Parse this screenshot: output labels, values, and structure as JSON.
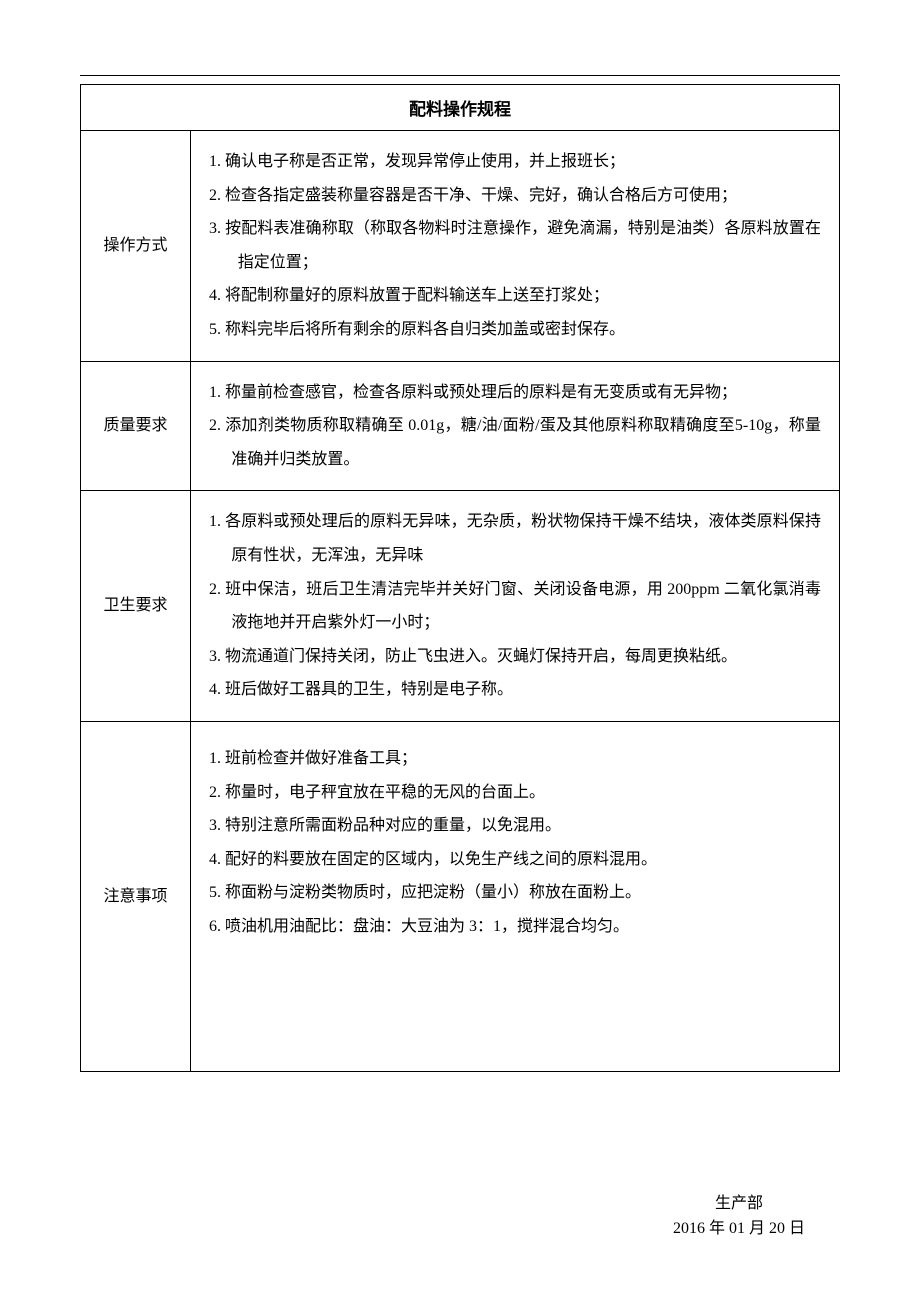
{
  "title": "配料操作规程",
  "rows": {
    "operation": {
      "label": "操作方式",
      "items": [
        "1.  确认电子称是否正常，发现异常停止使用，并上报班长；",
        "2.  检查各指定盛装称量容器是否干净、干燥、完好，确认合格后方可使用；",
        "3.  按配料表准确称取（称取各物料时注意操作，避免滴漏，特别是油类）各原料放置在指定位置；",
        "4.  将配制称量好的原料放置于配料输送车上送至打浆处；",
        "5.  称料完毕后将所有剩余的原料各自归类加盖或密封保存。"
      ]
    },
    "quality": {
      "label": "质量要求",
      "items": [
        "1. 称量前检查感官，检查各原料或预处理后的原料是有无变质或有无异物；",
        "2. 添加剂类物质称取精确至 0.01g，糖/油/面粉/蛋及其他原料称取精确度至5-10g，称量准确并归类放置。"
      ]
    },
    "hygiene": {
      "label": "卫生要求",
      "items": [
        "1. 各原料或预处理后的原料无异味，无杂质，粉状物保持干燥不结块，液体类原料保持原有性状，无浑浊，无异味",
        "2. 班中保洁，班后卫生清洁完毕并关好门窗、关闭设备电源，用 200ppm 二氧化氯消毒液拖地并开启紫外灯一小时；",
        "3. 物流通道门保持关闭，防止飞虫进入。灭蝇灯保持开启，每周更换粘纸。",
        "4. 班后做好工器具的卫生，特别是电子称。"
      ]
    },
    "notes": {
      "label": "注意事项",
      "items": [
        "1. 班前检查并做好准备工具；",
        "2. 称量时，电子秤宜放在平稳的无风的台面上。",
        "3. 特别注意所需面粉品种对应的重量，以免混用。",
        "4. 配好的料要放在固定的区域内，以免生产线之间的原料混用。",
        "5. 称面粉与淀粉类物质时，应把淀粉（量小）称放在面粉上。",
        "6. 喷油机用油配比：盘油：大豆油为 3：1，搅拌混合均匀。"
      ]
    }
  },
  "footer": {
    "dept": "生产部",
    "date": "2016 年 01 月 20 日"
  }
}
